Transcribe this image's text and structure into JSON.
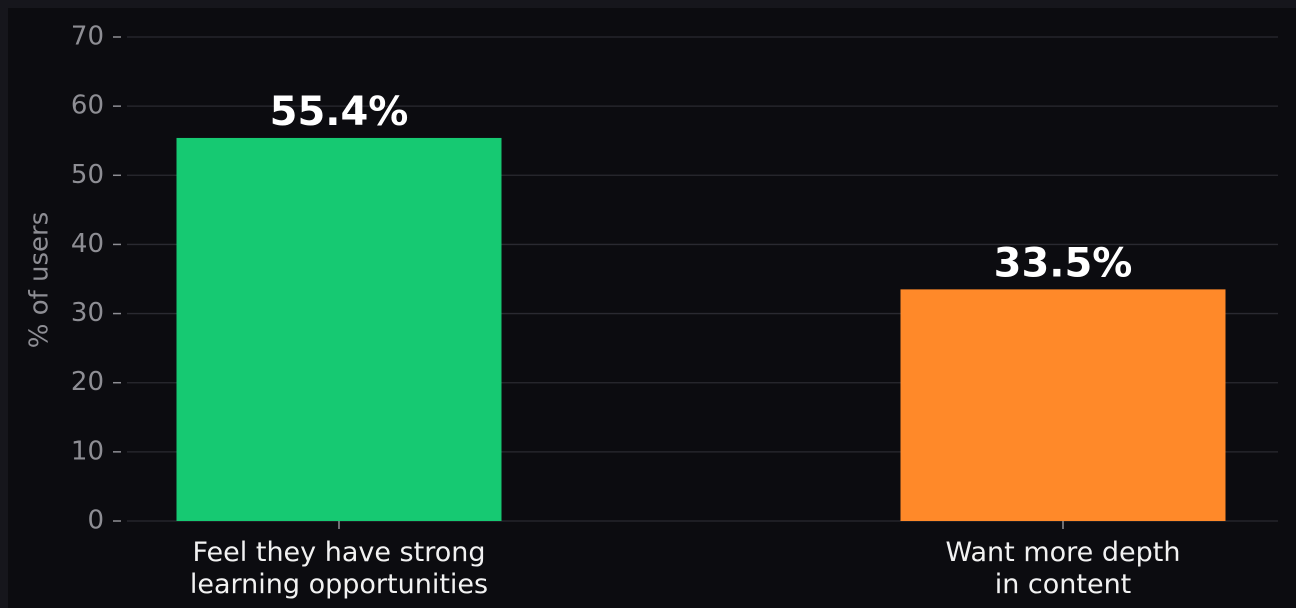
{
  "chart_data": {
    "type": "bar",
    "ylabel": "% of users",
    "categories": [
      "Feel they have strong\nlearning opportunities",
      "Want more depth\nin content"
    ],
    "values": [
      55.4,
      33.5
    ],
    "value_labels": [
      "55.4%",
      "33.5%"
    ],
    "colors": [
      "#16c972",
      "#ff8929"
    ],
    "ylim": [
      0,
      70
    ],
    "yticks": [
      0,
      10,
      20,
      30,
      40,
      50,
      60,
      70
    ],
    "grid": true
  }
}
